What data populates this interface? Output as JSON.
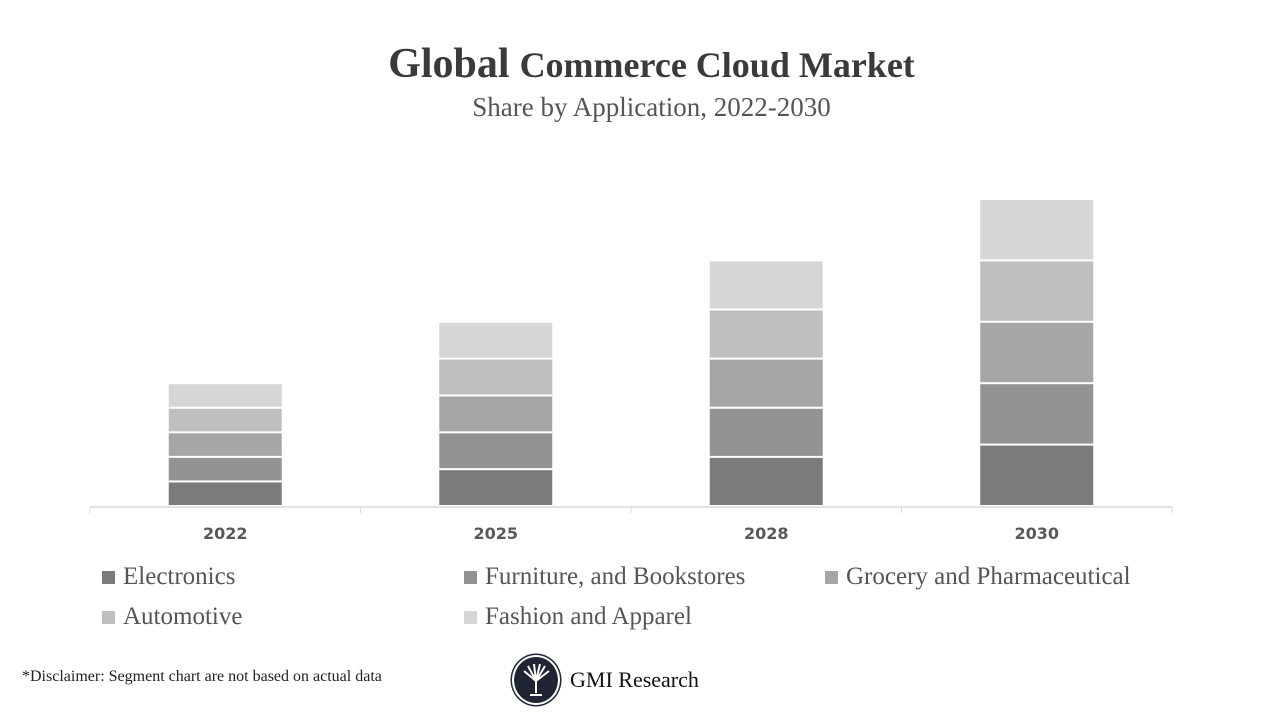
{
  "chart_data": {
    "type": "bar",
    "stacked": true,
    "title_part1": "Global",
    "title_part2": "Commerce Cloud Market",
    "subtitle": "Share by Application, 2022-2030",
    "categories": [
      "2022",
      "2025",
      "2028",
      "2030"
    ],
    "series": [
      {
        "name": "Electronics",
        "values": [
          4,
          6,
          8,
          10
        ],
        "color": "#7b7b7b"
      },
      {
        "name": "Furniture, and Bookstores",
        "values": [
          4,
          6,
          8,
          10
        ],
        "color": "#939393"
      },
      {
        "name": "Grocery and Pharmaceutical",
        "values": [
          4,
          6,
          8,
          10
        ],
        "color": "#a6a6a6"
      },
      {
        "name": "Automotive",
        "values": [
          4,
          6,
          8,
          10
        ],
        "color": "#bfbfbf"
      },
      {
        "name": "Fashion and Apparel",
        "values": [
          4,
          6,
          8,
          10
        ],
        "color": "#d6d6d6"
      }
    ],
    "ylim": [
      0,
      50
    ],
    "grid": false,
    "y_axis_shown": false,
    "legend_position": "bottom"
  },
  "disclaimer": "*Disclaimer:   Segment chart are not based on actual data",
  "logo": {
    "name": "GMI Research"
  }
}
